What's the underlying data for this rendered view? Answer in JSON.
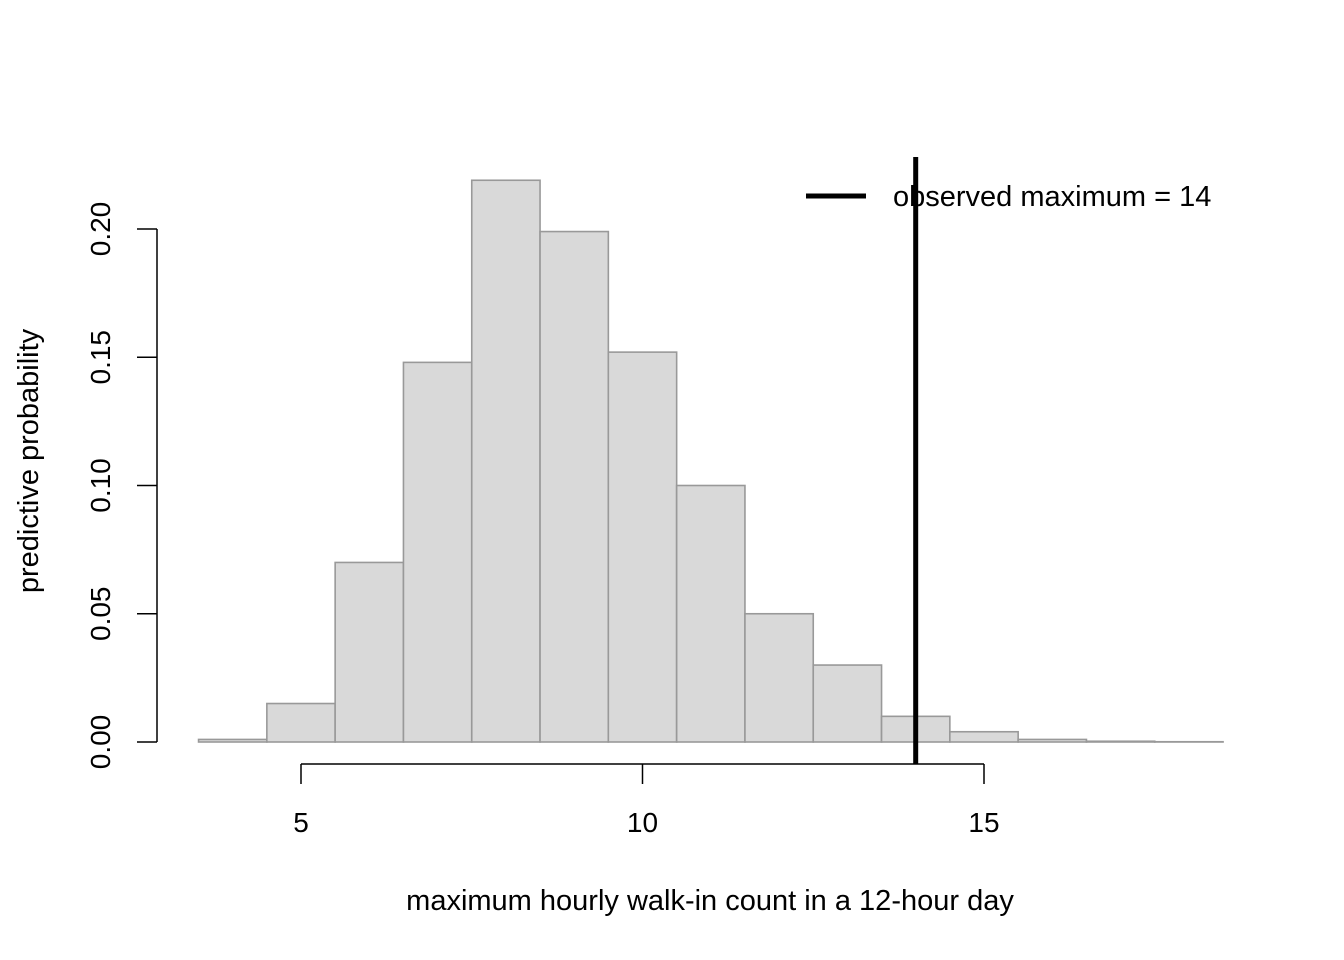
{
  "chart_data": {
    "type": "bar",
    "subtype": "histogram",
    "title": "",
    "xlabel": "maximum hourly walk-in count in a 12-hour day",
    "ylabel": "predictive probability",
    "bins": [
      4,
      5,
      6,
      7,
      8,
      9,
      10,
      11,
      12,
      13,
      14,
      15,
      16,
      17,
      18
    ],
    "bin_width": 1,
    "values": [
      0.001,
      0.015,
      0.07,
      0.148,
      0.219,
      0.199,
      0.152,
      0.1,
      0.05,
      0.03,
      0.01,
      0.004,
      0.001,
      0.0003,
      0.0001
    ],
    "xlim": [
      3.5,
      18.5
    ],
    "ylim": [
      0,
      0.22
    ],
    "x_ticks": [
      5,
      10,
      15
    ],
    "x_tick_labels": [
      "5",
      "10",
      "15"
    ],
    "y_ticks": [
      0,
      0.05,
      0.1,
      0.15,
      0.2
    ],
    "y_tick_labels": [
      "0.00",
      "0.05",
      "0.10",
      "0.15",
      "0.20"
    ],
    "reference_line": {
      "x": 14,
      "label": "observed maximum = 14",
      "color": "#000000"
    },
    "legend": {
      "position": "top-right",
      "entries": [
        "observed maximum = 14"
      ]
    },
    "grid": false,
    "bar_fill": "#d9d9d9",
    "bar_stroke": "#999999"
  }
}
